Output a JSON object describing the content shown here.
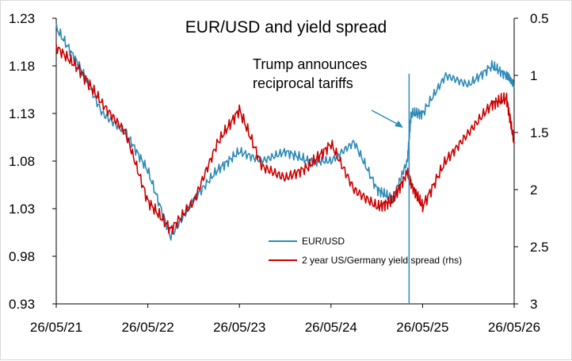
{
  "chart_data": {
    "type": "line",
    "title": "EUR/USD and yield spread",
    "x_tick_labels": [
      "26/05/21",
      "26/05/22",
      "26/05/23",
      "26/05/24",
      "26/05/25",
      "26/05/26"
    ],
    "x": [
      "2021-05-26",
      "2021-08-26",
      "2021-11-26",
      "2022-02-26",
      "2022-05-26",
      "2022-08-26",
      "2022-11-26",
      "2023-02-26",
      "2023-05-26",
      "2023-08-26",
      "2023-11-26",
      "2024-02-26",
      "2024-05-26",
      "2024-08-26",
      "2024-11-26",
      "2025-01-26",
      "2025-03-26",
      "2025-04-10",
      "2025-05-26",
      "2025-08-26",
      "2025-11-26",
      "2026-02-26",
      "2026-04-26",
      "2026-05-26"
    ],
    "y_left": {
      "lim": [
        0.93,
        1.23
      ],
      "ticks": [
        "0.93",
        "0.98",
        "1.03",
        "1.08",
        "1.13",
        "1.18",
        "1.23"
      ]
    },
    "y_right": {
      "lim": [
        0.5,
        3
      ],
      "inverted": true,
      "ticks": [
        "0.5",
        "1",
        "1.5",
        "2",
        "2.5",
        "3"
      ]
    },
    "series": [
      {
        "name": "EUR/USD",
        "axis": "left",
        "color": "#2e8bb8",
        "values": [
          1.22,
          1.18,
          1.13,
          1.11,
          1.07,
          1.0,
          1.04,
          1.07,
          1.09,
          1.08,
          1.09,
          1.08,
          1.08,
          1.1,
          1.05,
          1.04,
          1.08,
          1.13,
          1.13,
          1.17,
          1.16,
          1.18,
          1.17,
          1.16
        ]
      },
      {
        "name": "2 year US/Germany yield spread (rhs)",
        "axis": "right",
        "color": "#cc0000",
        "values": [
          0.75,
          0.95,
          1.25,
          1.5,
          2.1,
          2.35,
          2.1,
          1.6,
          1.3,
          1.8,
          1.9,
          1.8,
          1.6,
          2.0,
          2.15,
          2.1,
          1.85,
          1.95,
          2.15,
          1.75,
          1.5,
          1.25,
          1.2,
          1.6
        ]
      }
    ],
    "annotation": {
      "text": [
        "Trump announces",
        "reciprocal tariffs"
      ],
      "date": "2025-04-02"
    },
    "grid": false,
    "legend_position": "bottom-right"
  }
}
